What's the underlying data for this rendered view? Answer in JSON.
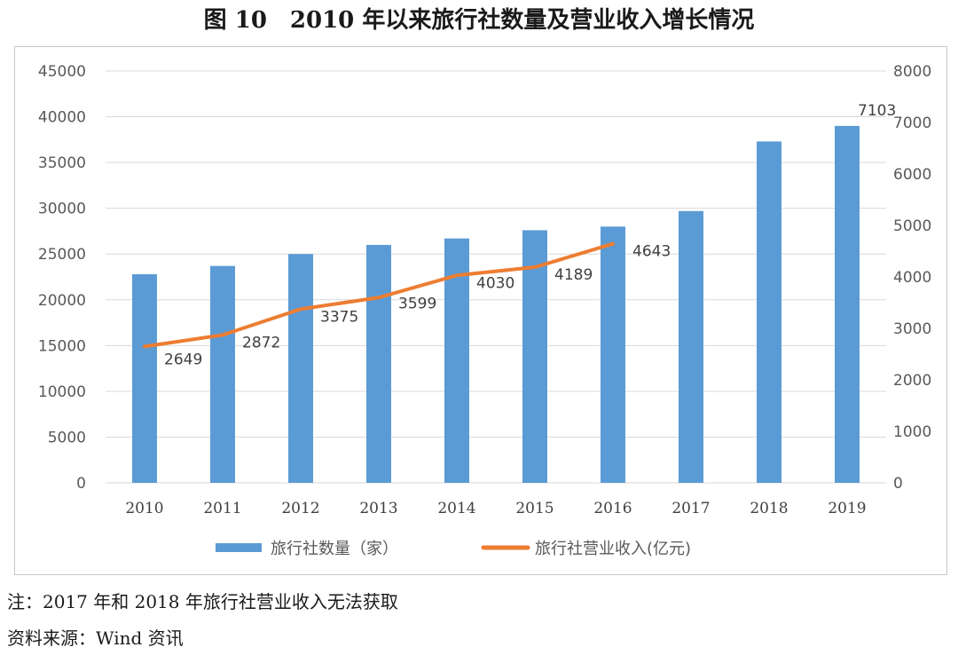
{
  "figure_title": "图 10　2010 年以来旅行社数量及营业收入增长情况",
  "note": "注：2017 年和 2018 年旅行社营业收入无法获取",
  "source": "资料来源：Wind 资讯",
  "colors": {
    "bar": "#5b9bd5",
    "line": "#ed7d31",
    "grid": "#d9d9d9"
  },
  "chart_data": {
    "type": "bar",
    "categories": [
      "2010",
      "2011",
      "2012",
      "2013",
      "2014",
      "2015",
      "2016",
      "2017",
      "2018",
      "2019"
    ],
    "series": [
      {
        "name": "旅行社数量（家）",
        "type": "bar",
        "axis": "left",
        "values": [
          22800,
          23700,
          25000,
          26000,
          26700,
          27600,
          28000,
          29700,
          37300,
          39000
        ]
      },
      {
        "name": "旅行社营业收入(亿元)",
        "type": "line",
        "axis": "right",
        "values": [
          2649,
          2872,
          3375,
          3599,
          4030,
          4189,
          4643,
          null,
          null,
          7103
        ]
      }
    ],
    "data_labels": [
      "2649",
      "2872",
      "3375",
      "3599",
      "4030",
      "4189",
      "4643",
      "",
      "",
      "7103"
    ],
    "y_left": {
      "min": 0,
      "max": 45000,
      "ticks": [
        "0",
        "5000",
        "10000",
        "15000",
        "20000",
        "25000",
        "30000",
        "35000",
        "40000",
        "45000"
      ]
    },
    "y_right": {
      "min": 0,
      "max": 8000,
      "ticks": [
        "0",
        "1000",
        "2000",
        "3000",
        "4000",
        "5000",
        "6000",
        "7000",
        "8000"
      ]
    },
    "grid": true,
    "legend_position": "bottom"
  }
}
